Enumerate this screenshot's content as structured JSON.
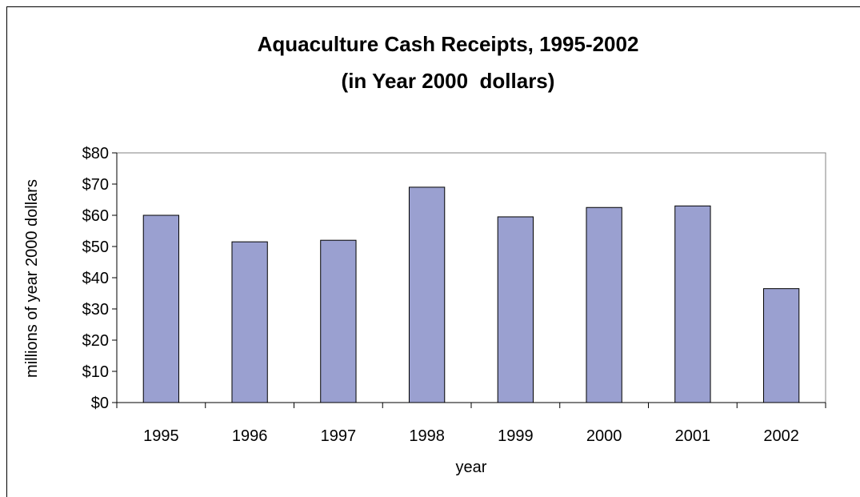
{
  "chart_data": {
    "type": "bar",
    "title": "Aquaculture Cash Receipts, 1995-2002",
    "subtitle": "(in Year 2000  dollars)",
    "xlabel": "year",
    "ylabel": "millions of year 2000 dollars",
    "categories": [
      "1995",
      "1996",
      "1997",
      "1998",
      "1999",
      "2000",
      "2001",
      "2002"
    ],
    "values": [
      60,
      51.5,
      52,
      69,
      59.5,
      62.5,
      63,
      36.5
    ],
    "ylim": [
      0,
      80
    ],
    "yticks": [
      0,
      10,
      20,
      30,
      40,
      50,
      60,
      70,
      80
    ],
    "ytick_labels": [
      "$0",
      "$10",
      "$20",
      "$30",
      "$40",
      "$50",
      "$60",
      "$70",
      "$80"
    ],
    "bar_color": "#9aa0d0",
    "grid": false,
    "legend": "none"
  }
}
